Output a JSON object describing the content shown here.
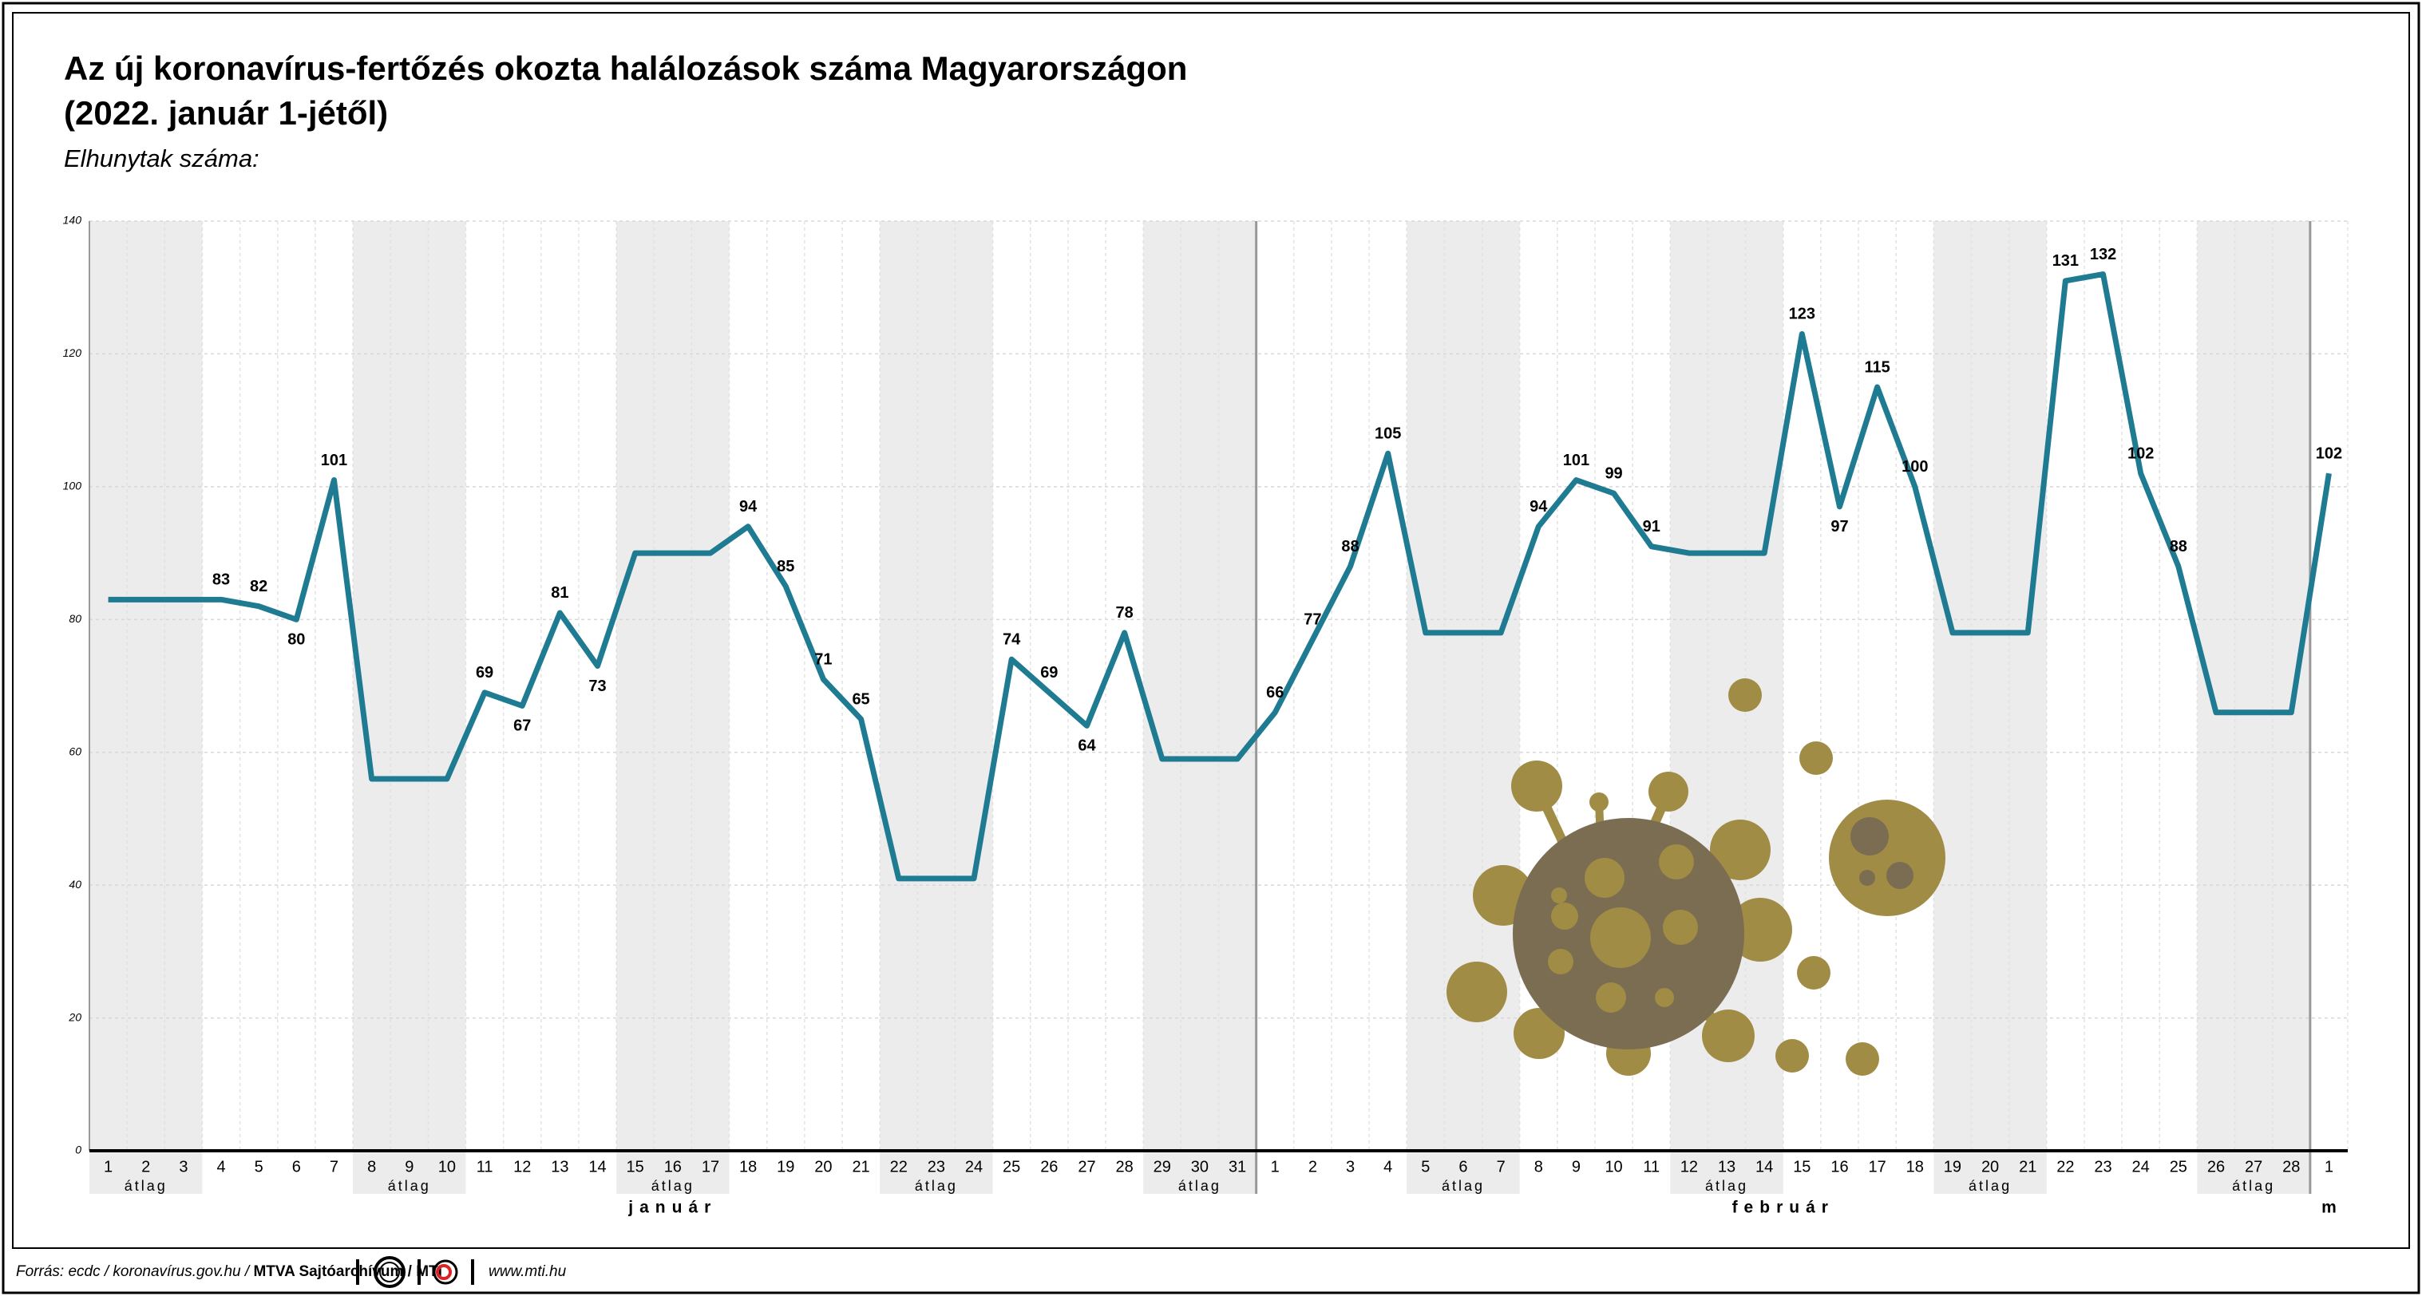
{
  "chart_data": {
    "type": "line",
    "title": [
      "Az új koronavírus-fertőzés okozta halálozások száma Magyarországon",
      "(2022. január 1-jétől)"
    ],
    "subtitle": "Elhunytak száma:",
    "color": "#1e7b91",
    "ylim": [
      0,
      140
    ],
    "yticks": [
      0,
      20,
      40,
      60,
      80,
      100,
      120,
      140
    ],
    "grid": true,
    "months": [
      {
        "label": "január",
        "categories": [
          "1",
          "2",
          "3",
          "4",
          "5",
          "6",
          "7",
          "8",
          "9",
          "10",
          "11",
          "12",
          "13",
          "14",
          "15",
          "16",
          "17",
          "18",
          "19",
          "20",
          "21",
          "22",
          "23",
          "24",
          "25",
          "26",
          "27",
          "28",
          "29",
          "30",
          "31"
        ],
        "values": [
          83,
          83,
          83,
          83,
          82,
          80,
          101,
          56,
          56,
          56,
          69,
          67,
          81,
          73,
          90,
          90,
          90,
          94,
          85,
          71,
          65,
          41,
          41,
          41,
          74,
          69,
          64,
          78,
          59,
          59,
          59
        ],
        "value_labels": [
          null,
          null,
          null,
          "83",
          "82",
          "80",
          "101",
          null,
          null,
          null,
          "69",
          "67",
          "81",
          "73",
          null,
          null,
          null,
          "94",
          "85",
          "71",
          "65",
          null,
          null,
          null,
          "74",
          "69",
          "64",
          "78",
          null,
          null,
          null
        ],
        "averages": [
          {
            "label": "átlag",
            "from": "1",
            "to": "3"
          },
          {
            "label": "átlag",
            "from": "8",
            "to": "10"
          },
          {
            "label": "átlag",
            "from": "15",
            "to": "17"
          },
          {
            "label": "átlag",
            "from": "22",
            "to": "24"
          },
          {
            "label": "átlag",
            "from": "29",
            "to": "31"
          }
        ]
      },
      {
        "label": "február",
        "categories": [
          "1",
          "2",
          "3",
          "4",
          "5",
          "6",
          "7",
          "8",
          "9",
          "10",
          "11",
          "12",
          "13",
          "14",
          "15",
          "16",
          "17",
          "18",
          "19",
          "20",
          "21",
          "22",
          "23",
          "24",
          "25",
          "26",
          "27",
          "28"
        ],
        "values": [
          66,
          77,
          88,
          105,
          78,
          78,
          78,
          94,
          101,
          99,
          91,
          90,
          90,
          90,
          123,
          97,
          115,
          100,
          78,
          78,
          78,
          131,
          132,
          102,
          88,
          66,
          66,
          66
        ],
        "value_labels": [
          "66",
          "77",
          "88",
          "105",
          null,
          null,
          null,
          "94",
          "101",
          "99",
          "91",
          null,
          null,
          null,
          "123",
          "97",
          "115",
          "100",
          null,
          null,
          null,
          "131",
          "132",
          "102",
          "88",
          null,
          null,
          null
        ],
        "averages": [
          {
            "label": "átlag",
            "from": "5",
            "to": "7"
          },
          {
            "label": "átlag",
            "from": "12",
            "to": "14"
          },
          {
            "label": "átlag",
            "from": "19",
            "to": "21"
          },
          {
            "label": "átlag",
            "from": "26",
            "to": "28"
          }
        ]
      },
      {
        "label": "m",
        "categories": [
          "1"
        ],
        "values": [
          102
        ],
        "value_labels": [
          "102"
        ],
        "averages": []
      }
    ],
    "source": "Forrás: ecdc / koronavírus.gov.hu / ",
    "source_bold": "MTVA Sajtóarchívum / MTI",
    "website": "www.mti.hu"
  }
}
